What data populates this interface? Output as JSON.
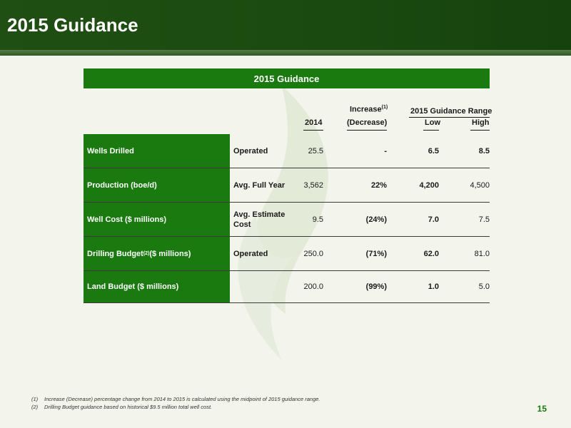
{
  "page": {
    "title": "2015 Guidance",
    "page_number": "15"
  },
  "table": {
    "title": "2015 Guidance",
    "headers": {
      "col_2014": "2014",
      "increase_top": "Increase",
      "increase_sup": "(1)",
      "increase_bottom": "(Decrease)",
      "range_group": "2015 Guidance Range",
      "low": "Low",
      "high": "High"
    },
    "rows": [
      {
        "label": "Wells Drilled",
        "label_sup": "",
        "label_suffix": "",
        "desc": "Operated",
        "v2014": "25.5",
        "change": "-",
        "low": "6.5",
        "high": "8.5"
      },
      {
        "label": "Production (boe/d)",
        "label_sup": "",
        "label_suffix": "",
        "desc": "Avg. Full Year",
        "v2014": "3,562",
        "change": "22%",
        "low": "4,200",
        "high": "4,500"
      },
      {
        "label": "Well Cost ($ millions)",
        "label_sup": "",
        "label_suffix": "",
        "desc": "Avg. Estimate Cost",
        "v2014": "9.5",
        "change": "(24%)",
        "low": "7.0",
        "high": "7.5"
      },
      {
        "label": "Drilling Budget",
        "label_sup": "(2)",
        "label_suffix": " ($ millions)",
        "desc": "Operated",
        "v2014": "250.0",
        "change": "(71%)",
        "low": "62.0",
        "high": "81.0"
      },
      {
        "label": "Land Budget ($ millions)",
        "label_sup": "",
        "label_suffix": "",
        "desc": "",
        "v2014": "200.0",
        "change": "(99%)",
        "low": "1.0",
        "high": "5.0"
      }
    ]
  },
  "footnotes": [
    {
      "num": "(1)",
      "text": "Increase (Decrease) percentage change from 2014 to 2015 is calculated using the midpoint of 2015 guidance range."
    },
    {
      "num": "(2)",
      "text": "Drilling Budget guidance based on historical $9.5 million total well cost."
    }
  ],
  "colors": {
    "header_dark_green": "#1f4f12",
    "table_green": "#1a7a10",
    "page_number_green": "#1a7a10",
    "background": "#f3f4ec"
  }
}
